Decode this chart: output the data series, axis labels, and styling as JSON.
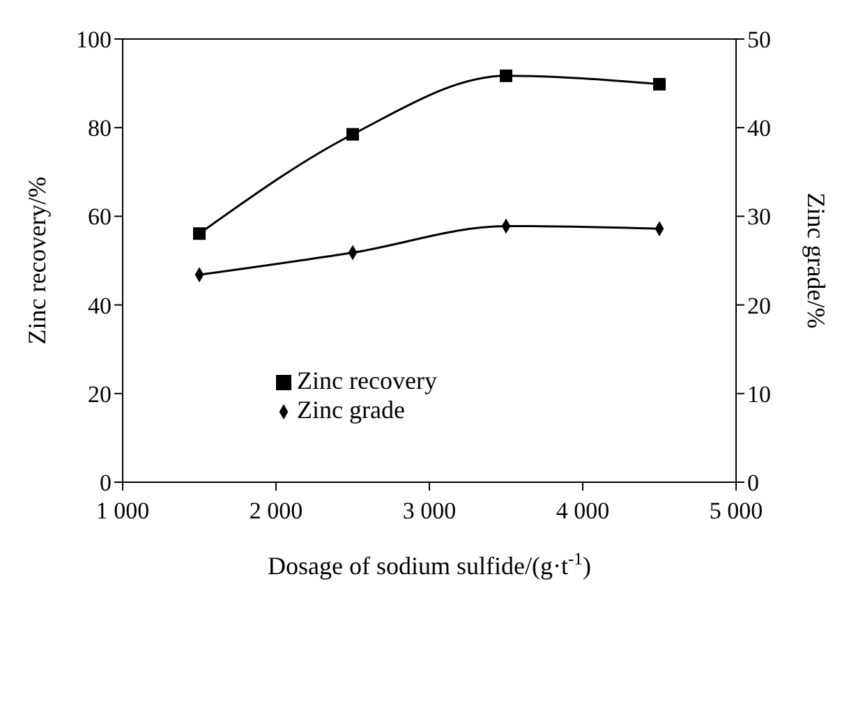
{
  "chart_data": {
    "type": "line",
    "xlabel": "Dosage of sodium sulfide/(g·t$^{-1}$)",
    "ylabel": "Zinc recovery/%",
    "y2label": "Zinc grade/%",
    "x": [
      1500,
      2500,
      3500,
      4500
    ],
    "series": [
      {
        "name": "Zinc recovery",
        "color": "#000000",
        "marker": "square",
        "values": [
          56.1,
          78.5,
          91.7,
          89.8
        ]
      },
      {
        "name": "Zinc grade",
        "color": "#000000",
        "marker": "diamond",
        "axis": "y2",
        "values": [
          23.4,
          25.9,
          28.9,
          28.6
        ]
      }
    ],
    "xlim": [
      1000,
      5000
    ],
    "xticks": [
      {
        "value": 1000,
        "label": "1 000"
      },
      {
        "value": 2000,
        "label": "2 000"
      },
      {
        "value": 3000,
        "label": "3 000"
      },
      {
        "value": 4000,
        "label": "4 000"
      },
      {
        "value": 5000,
        "label": "5 000"
      }
    ],
    "ylim": [
      0,
      100
    ],
    "yticks": [
      0,
      20,
      40,
      60,
      80,
      100
    ],
    "y2lim": [
      0,
      50
    ],
    "y2ticks": [
      0,
      10,
      20,
      30,
      40,
      50
    ],
    "grid": false,
    "legend": "center",
    "line_style": "solid"
  }
}
